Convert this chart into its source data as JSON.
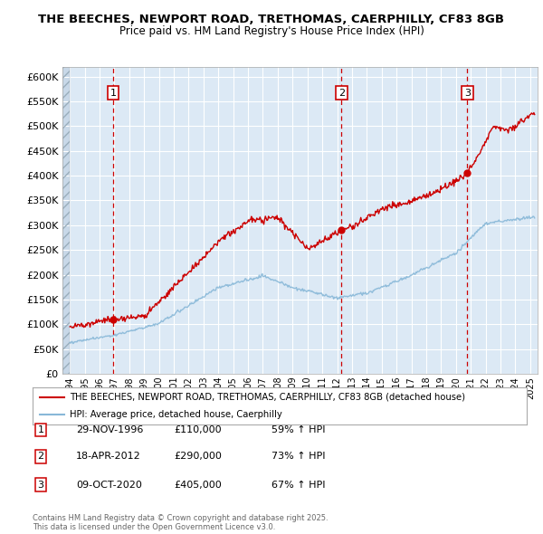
{
  "title_line1": "THE BEECHES, NEWPORT ROAD, TRETHOMAS, CAERPHILLY, CF83 8GB",
  "title_line2": "Price paid vs. HM Land Registry's House Price Index (HPI)",
  "ylim": [
    0,
    620000
  ],
  "yticks": [
    0,
    50000,
    100000,
    150000,
    200000,
    250000,
    300000,
    350000,
    400000,
    450000,
    500000,
    550000,
    600000
  ],
  "xlim_start": 1993.5,
  "xlim_end": 2025.5,
  "fig_bg_color": "#ffffff",
  "plot_bg_color": "#dce9f5",
  "hatch_color": "#c8d8e8",
  "grid_color": "#ffffff",
  "red_line_color": "#cc0000",
  "blue_line_color": "#88b8d8",
  "transaction_dates": [
    1996.91,
    2012.29,
    2020.77
  ],
  "transaction_prices": [
    110000,
    290000,
    405000
  ],
  "transaction_labels": [
    "1",
    "2",
    "3"
  ],
  "transaction_date_strs": [
    "29-NOV-1996",
    "18-APR-2012",
    "09-OCT-2020"
  ],
  "transaction_price_strs": [
    "£110,000",
    "£290,000",
    "£405,000"
  ],
  "transaction_hpi_strs": [
    "59% ↑ HPI",
    "73% ↑ HPI",
    "67% ↑ HPI"
  ],
  "legend_red_label": "THE BEECHES, NEWPORT ROAD, TRETHOMAS, CAERPHILLY, CF83 8GB (detached house)",
  "legend_blue_label": "HPI: Average price, detached house, Caerphilly",
  "copyright_text": "Contains HM Land Registry data © Crown copyright and database right 2025.\nThis data is licensed under the Open Government Licence v3.0.",
  "figsize": [
    6.0,
    5.9
  ],
  "dpi": 100
}
